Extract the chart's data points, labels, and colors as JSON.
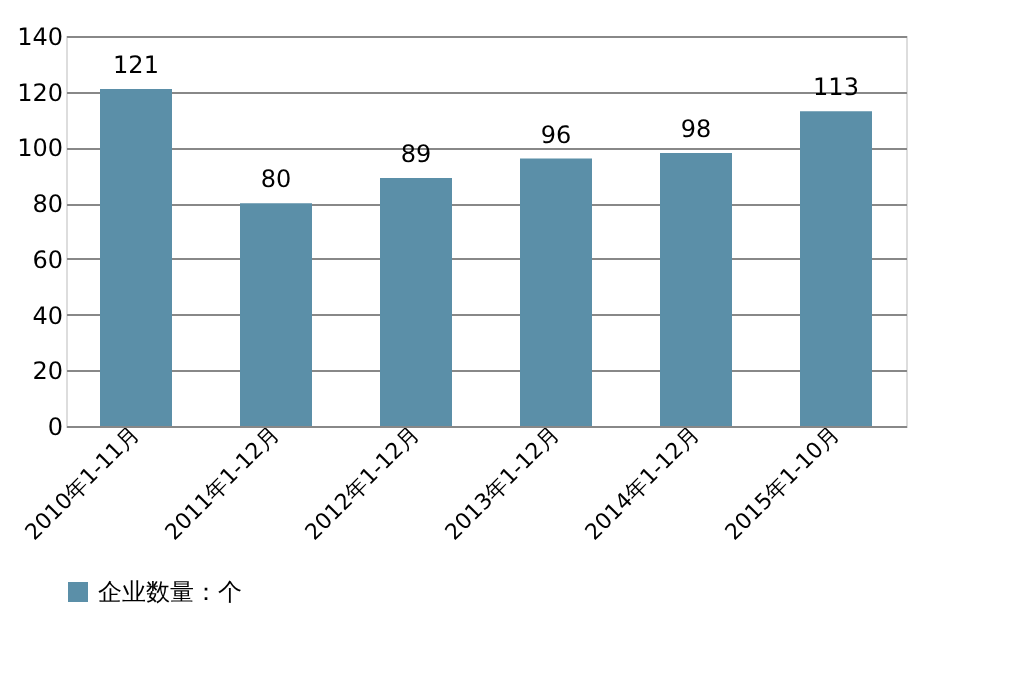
{
  "chart_data": {
    "type": "bar",
    "categories": [
      "2010年1-11月",
      "2011年1-12月",
      "2012年1-12月",
      "2013年1-12月",
      "2014年1-12月",
      "2015年1-10月"
    ],
    "series": [
      {
        "name": "企业数量：个",
        "color": "#5b8fa8",
        "values": [
          121,
          80,
          89,
          96,
          98,
          113
        ]
      }
    ],
    "ylim": [
      0,
      140
    ],
    "yticks": [
      0,
      20,
      40,
      60,
      80,
      100,
      120,
      140
    ],
    "grid": "y",
    "legend": "bottom",
    "data_labels": true
  }
}
